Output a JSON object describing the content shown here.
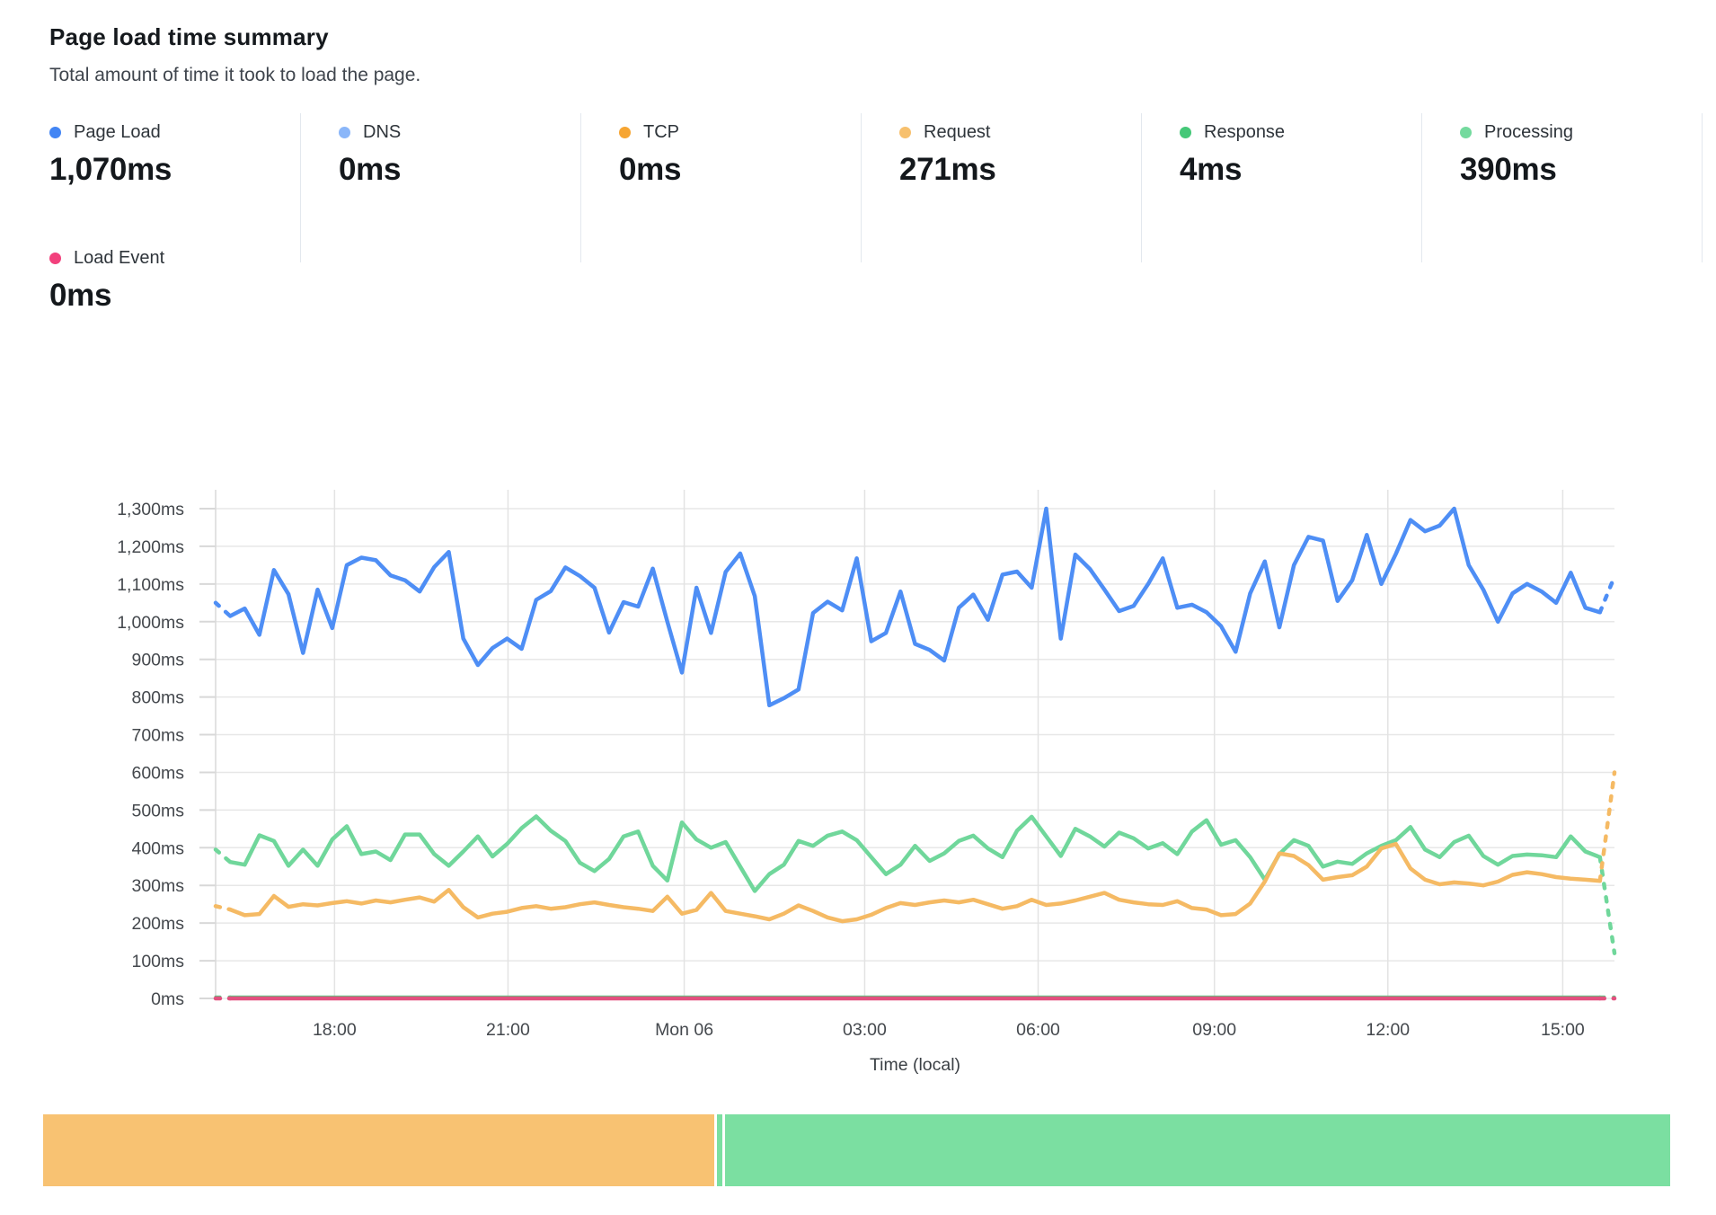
{
  "header": {
    "title": "Page load time summary",
    "subtitle": "Total amount of time it took to load the page."
  },
  "metrics": [
    {
      "label": "Page Load",
      "value": "1,070ms",
      "color": "#4285f4"
    },
    {
      "label": "DNS",
      "value": "0ms",
      "color": "#8ab6f9"
    },
    {
      "label": "TCP",
      "value": "0ms",
      "color": "#f6a532"
    },
    {
      "label": "Request",
      "value": "271ms",
      "color": "#f7c06d"
    },
    {
      "label": "Response",
      "value": "4ms",
      "color": "#45c878"
    },
    {
      "label": "Processing",
      "value": "390ms",
      "color": "#74da9e"
    }
  ],
  "metrics_row2": [
    {
      "label": "Load Event",
      "value": "0ms",
      "color": "#f2407c"
    }
  ],
  "chart_data": {
    "type": "line",
    "xlabel": "Time (local)",
    "y_unit": "ms",
    "ylim": [
      0,
      1300
    ],
    "y_tick_step": 100,
    "grid": true,
    "edge_segments_dashed": true,
    "x_ticks": [
      {
        "label": "18:00",
        "f": 0.085
      },
      {
        "label": "21:00",
        "f": 0.209
      },
      {
        "label": "Mon 06",
        "f": 0.335
      },
      {
        "label": "03:00",
        "f": 0.464
      },
      {
        "label": "06:00",
        "f": 0.588
      },
      {
        "label": "09:00",
        "f": 0.714
      },
      {
        "label": "12:00",
        "f": 0.838
      },
      {
        "label": "15:00",
        "f": 0.963
      }
    ],
    "series": [
      {
        "name": "DNS",
        "color": "#8ab6f9",
        "stroke_width": 0,
        "hidden": true,
        "flat": 0,
        "count": 97
      },
      {
        "name": "TCP",
        "color": "#f6a532",
        "stroke_width": 0,
        "hidden": true,
        "flat": 0,
        "count": 97
      },
      {
        "name": "Processing",
        "color": "#70d79b",
        "stroke_width": 4.5,
        "values": [
          395,
          362,
          355,
          433,
          418,
          352,
          395,
          352,
          422,
          457,
          383,
          390,
          367,
          435,
          435,
          383,
          352,
          390,
          430,
          377,
          410,
          452,
          483,
          445,
          418,
          360,
          338,
          370,
          430,
          443,
          352,
          313,
          467,
          422,
          400,
          415,
          350,
          285,
          330,
          355,
          418,
          405,
          432,
          443,
          420,
          375,
          330,
          355,
          405,
          365,
          385,
          418,
          432,
          398,
          375,
          445,
          482,
          430,
          378,
          450,
          430,
          403,
          440,
          425,
          398,
          412,
          383,
          443,
          473,
          408,
          420,
          375,
          315,
          383,
          420,
          405,
          350,
          363,
          357,
          385,
          405,
          420,
          455,
          395,
          375,
          415,
          432,
          378,
          355,
          378,
          382,
          380,
          375,
          430,
          390,
          375,
          120
        ]
      },
      {
        "name": "Request",
        "color": "#f5ba64",
        "stroke_width": 4.5,
        "values": [
          245,
          236,
          221,
          224,
          272,
          243,
          250,
          247,
          253,
          258,
          252,
          260,
          255,
          262,
          268,
          257,
          288,
          242,
          215,
          225,
          230,
          240,
          245,
          238,
          242,
          250,
          255,
          248,
          242,
          238,
          232,
          270,
          225,
          235,
          280,
          232,
          225,
          218,
          210,
          225,
          247,
          232,
          215,
          205,
          210,
          222,
          240,
          253,
          248,
          255,
          260,
          255,
          262,
          250,
          238,
          245,
          262,
          248,
          252,
          260,
          270,
          280,
          262,
          255,
          250,
          248,
          258,
          240,
          236,
          221,
          224,
          252,
          310,
          385,
          378,
          354,
          315,
          322,
          327,
          350,
          398,
          410,
          345,
          315,
          303,
          308,
          305,
          300,
          310,
          328,
          335,
          330,
          322,
          318,
          315,
          312,
          600
        ]
      },
      {
        "name": "Page Load",
        "color": "#4e8ef5",
        "stroke_width": 4.5,
        "values": [
          1050,
          1015,
          1035,
          965,
          1137,
          1073,
          917,
          1085,
          983,
          1150,
          1170,
          1163,
          1123,
          1110,
          1080,
          1145,
          1185,
          955,
          885,
          930,
          955,
          928,
          1058,
          1081,
          1144,
          1121,
          1090,
          971,
          1052,
          1040,
          1141,
          1000,
          865,
          1090,
          970,
          1132,
          1181,
          1068,
          778,
          797,
          820,
          1023,
          1053,
          1030,
          1168,
          948,
          970,
          1080,
          941,
          925,
          897,
          1037,
          1072,
          1005,
          1125,
          1133,
          1090,
          1300,
          955,
          1178,
          1140,
          1085,
          1028,
          1042,
          1100,
          1168,
          1037,
          1045,
          1025,
          988,
          920,
          1075,
          1160,
          985,
          1150,
          1225,
          1215,
          1055,
          1110,
          1230,
          1100,
          1180,
          1270,
          1240,
          1255,
          1300,
          1150,
          1085,
          1000,
          1075,
          1100,
          1080,
          1050,
          1130,
          1037,
          1025,
          1120
        ]
      },
      {
        "name": "Response",
        "color": "#57cb81",
        "stroke_width": 3,
        "flat": 4,
        "count": 97
      },
      {
        "name": "Load Event",
        "color": "#e2517f",
        "stroke_width": 4.5,
        "flat": 0,
        "count": 97
      }
    ]
  },
  "timeline_bar": {
    "segments": [
      {
        "name": "request-phase",
        "color": "#f8c272",
        "pct": 41.2
      },
      {
        "name": "processing-sliver",
        "color": "#7bdfa1",
        "pct": 0.3
      },
      {
        "name": "processing-phase",
        "color": "#7bdfa1",
        "pct": 58.0
      }
    ]
  }
}
